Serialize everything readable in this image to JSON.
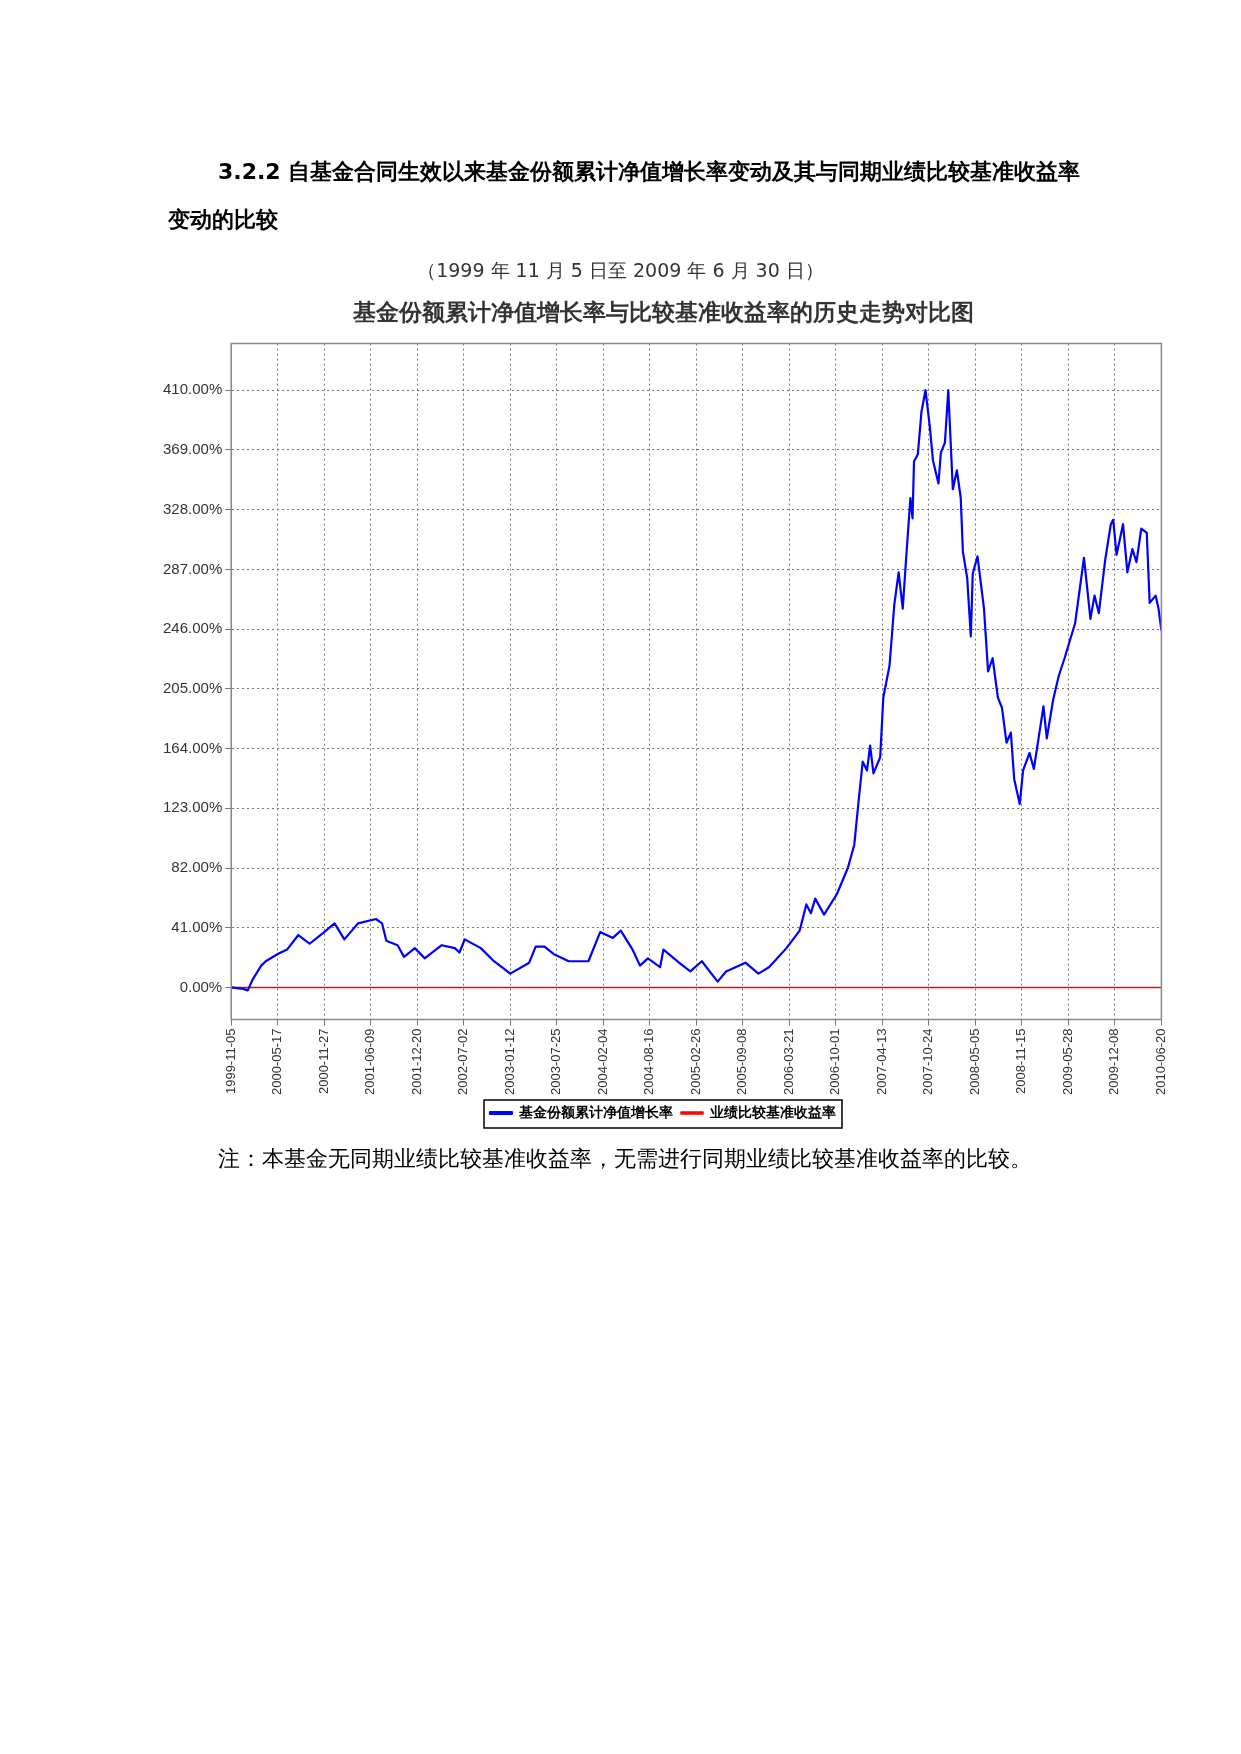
{
  "chart_data": {
    "type": "line",
    "title": "基金份额累计净值增长率与比较基准收益率的历史走势对比图",
    "subtitle": "（1999 年 11 月 5 日至 2009 年 6 月 30 日）",
    "annotations": [
      "3.2.2 自基金合同生效以来基金份额累计净值增长率变动及其与同期业绩比较基准收益率变动的比较",
      "注：本基金无同期业绩比较基准收益率，无需进行同期业绩比较基准收益率的比较。"
    ],
    "series": [
      {
        "name": "基金份额累计净值增长率",
        "color": "#0000ff",
        "x": [
          "1999-11-05",
          "1999-12-25",
          "2000-01-13",
          "2000-02-01",
          "2000-03-09",
          "2000-03-28",
          "2000-05-17",
          "2000-06-25",
          "2000-08-11",
          "2000-09-27",
          "2000-11-27",
          "2001-01-09",
          "2001-02-19",
          "2001-04-17",
          "2001-07-01",
          "2001-07-26",
          "2001-08-13",
          "2001-09-29",
          "2001-10-26",
          "2001-12-10",
          "2002-01-20",
          "2002-04-01",
          "2002-05-26",
          "2002-06-14",
          "2002-07-06",
          "2002-09-11",
          "2002-11-05",
          "2003-01-12",
          "2003-04-01",
          "2003-04-28",
          "2003-06-04",
          "2003-07-11",
          "2003-09-13",
          "2003-12-04",
          "2004-01-22",
          "2004-03-15",
          "2004-04-17",
          "2004-06-05",
          "2004-07-06",
          "2004-08-08",
          "2004-09-28",
          "2004-10-12",
          "2004-12-16",
          "2005-02-01",
          "2005-03-21",
          "2005-05-26",
          "2005-06-30",
          "2005-09-19",
          "2005-11-12",
          "2005-12-27",
          "2006-03-09",
          "2006-05-03",
          "2006-05-31",
          "2006-06-19",
          "2006-07-07",
          "2006-08-13",
          "2006-10-05",
          "2006-11-20",
          "2006-12-17",
          "2007-01-04",
          "2007-01-21",
          "2007-02-08",
          "2007-02-21",
          "2007-03-07",
          "2007-04-04",
          "2007-04-17",
          "2007-05-13",
          "2007-06-02",
          "2007-06-20",
          "2007-07-07",
          "2007-07-21",
          "2007-08-08",
          "2007-08-17",
          "2007-08-23",
          "2007-09-08",
          "2007-09-23",
          "2007-10-10",
          "2007-10-28",
          "2007-11-10",
          "2007-12-03",
          "2007-12-13",
          "2007-12-30",
          "2008-01-13",
          "2008-02-01",
          "2008-02-18",
          "2008-03-05",
          "2008-03-14",
          "2008-04-01",
          "2008-04-16",
          "2008-04-24",
          "2008-05-14",
          "2008-06-10",
          "2008-06-27",
          "2008-07-16",
          "2008-08-07",
          "2008-08-24",
          "2008-09-12",
          "2008-09-30",
          "2008-10-14",
          "2008-11-06",
          "2008-11-20",
          "2008-12-17",
          "2009-01-04",
          "2009-02-13",
          "2009-02-27",
          "2009-03-26",
          "2009-04-18",
          "2009-05-12",
          "2009-06-25",
          "2009-08-01",
          "2009-08-28",
          "2009-09-14",
          "2009-10-02",
          "2009-10-29",
          "2009-11-21",
          "2009-12-01",
          "2009-12-15",
          "2010-01-11",
          "2010-01-29",
          "2010-02-19",
          "2010-03-08",
          "2010-03-28",
          "2010-04-20",
          "2010-05-02",
          "2010-05-27",
          "2010-06-08",
          "2010-06-20"
        ],
        "values": [
          0,
          -1,
          -2,
          5,
          15,
          18,
          23,
          26,
          36,
          30,
          38,
          44,
          33,
          44,
          47,
          44,
          32,
          29,
          21,
          27,
          20,
          29,
          27,
          24,
          33,
          27,
          18,
          9.5,
          17,
          28,
          28,
          23,
          18,
          18,
          38,
          34,
          39,
          26,
          15,
          20,
          14,
          26,
          17,
          11,
          18,
          4,
          11,
          17,
          9.5,
          14,
          27,
          39,
          57,
          51,
          61,
          50,
          64,
          82,
          98,
          128,
          155,
          149,
          166,
          147,
          158,
          199,
          221,
          263,
          285,
          260,
          294,
          336,
          322,
          361,
          366,
          395,
          410,
          385,
          362,
          346,
          367,
          374,
          410,
          342,
          355,
          336,
          299,
          281,
          241,
          284,
          296,
          260,
          217,
          226,
          199,
          192,
          168,
          175,
          143,
          126,
          149,
          161,
          150,
          193,
          171,
          198,
          214,
          226,
          250,
          295,
          253,
          269,
          257,
          294,
          318,
          321,
          297,
          318,
          285,
          301,
          292,
          315,
          312,
          264,
          269,
          260,
          245
        ]
      },
      {
        "name": "业绩比较基准收益率",
        "color": "#ff0000",
        "x": [
          "1999-11-05",
          "2010-06-20"
        ],
        "values": [
          0,
          0
        ]
      }
    ],
    "xlim": [
      "1999-11-05",
      "2010-06-20"
    ],
    "xticks": [
      "1999-11-05",
      "2000-05-17",
      "2000-11-27",
      "2001-06-09",
      "2001-12-20",
      "2002-07-02",
      "2003-01-12",
      "2003-07-25",
      "2004-02-04",
      "2004-08-16",
      "2005-02-26",
      "2005-09-08",
      "2006-03-21",
      "2006-10-01",
      "2007-04-13",
      "2007-10-24",
      "2008-05-05",
      "2008-11-15",
      "2009-05-28",
      "2009-12-08",
      "2010-06-20"
    ],
    "ylim": [
      -22,
      442
    ],
    "yticks": [
      {
        "value": 0,
        "label": "0.00%"
      },
      {
        "value": 41,
        "label": "41.00%"
      },
      {
        "value": 82,
        "label": "82.00%"
      },
      {
        "value": 123,
        "label": "123.00%"
      },
      {
        "value": 164,
        "label": "164.00%"
      },
      {
        "value": 205,
        "label": "205.00%"
      },
      {
        "value": 246,
        "label": "246.00%"
      },
      {
        "value": 287,
        "label": "287.00%"
      },
      {
        "value": 328,
        "label": "328.00%"
      },
      {
        "value": 369,
        "label": "369.00%"
      },
      {
        "value": 410,
        "label": "410.00%"
      }
    ],
    "grid": true,
    "legend": "bottom"
  }
}
